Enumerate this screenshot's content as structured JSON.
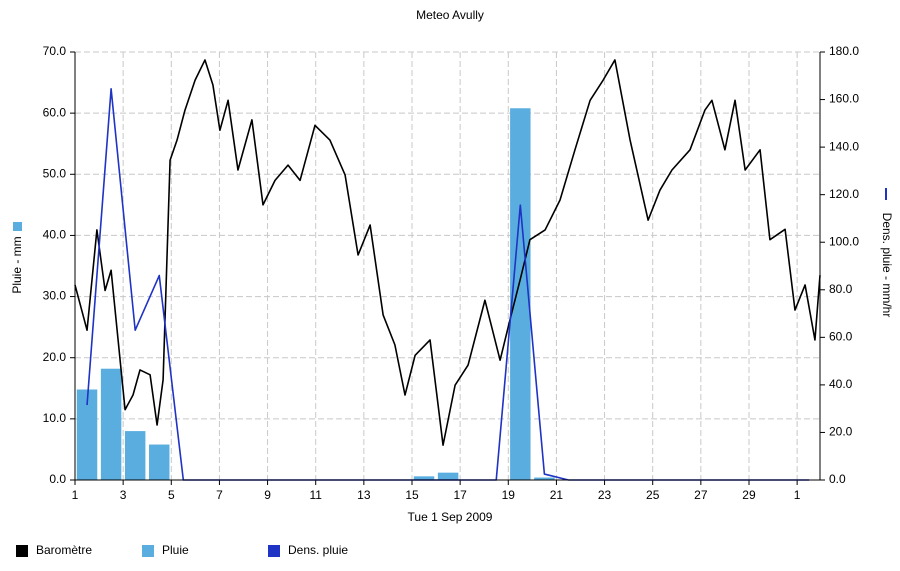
{
  "chart_data": {
    "type": "combo",
    "title": "Meteo Avully",
    "xlabel": "Tue 1 Sep 2009",
    "ylabel": "Pluie - mm",
    "y2label": "Dens. pluie - mm/hr",
    "xlim": [
      0,
      30.95
    ],
    "xticks": [
      {
        "value": 0,
        "label": "1"
      },
      {
        "value": 2,
        "label": "3"
      },
      {
        "value": 4,
        "label": "5"
      },
      {
        "value": 6,
        "label": "7"
      },
      {
        "value": 8,
        "label": "9"
      },
      {
        "value": 10,
        "label": "11"
      },
      {
        "value": 12,
        "label": "13"
      },
      {
        "value": 14,
        "label": "15"
      },
      {
        "value": 16,
        "label": "17"
      },
      {
        "value": 18,
        "label": "19"
      },
      {
        "value": 20,
        "label": "21"
      },
      {
        "value": 22,
        "label": "23"
      },
      {
        "value": 24,
        "label": "25"
      },
      {
        "value": 26,
        "label": "27"
      },
      {
        "value": 28,
        "label": "29"
      },
      {
        "value": 30,
        "label": "1"
      }
    ],
    "ylim": [
      0,
      70
    ],
    "yticks": [
      {
        "value": 0,
        "label": "0.0"
      },
      {
        "value": 10,
        "label": "10.0"
      },
      {
        "value": 20,
        "label": "20.0"
      },
      {
        "value": 30,
        "label": "30.0"
      },
      {
        "value": 40,
        "label": "40.0"
      },
      {
        "value": 50,
        "label": "50.0"
      },
      {
        "value": 60,
        "label": "60.0"
      },
      {
        "value": 70,
        "label": "70.0"
      }
    ],
    "y2lim": [
      0,
      180
    ],
    "y2ticks": [
      {
        "value": 0,
        "label": "0.0"
      },
      {
        "value": 20,
        "label": "20.0"
      },
      {
        "value": 40,
        "label": "40.0"
      },
      {
        "value": 60,
        "label": "60.0"
      },
      {
        "value": 80,
        "label": "80.0"
      },
      {
        "value": 100,
        "label": "100.0"
      },
      {
        "value": 120,
        "label": "120.0"
      },
      {
        "value": 140,
        "label": "140.0"
      },
      {
        "value": 160,
        "label": "160.0"
      },
      {
        "value": 180,
        "label": "180.0"
      }
    ],
    "grid": true,
    "legend": "bottom",
    "series": [
      {
        "name": "Baromètre",
        "type": "line",
        "color": "#000000",
        "x": [
          0,
          0.5,
          0.91,
          1.25,
          1.5,
          1.79,
          2.08,
          2.41,
          2.7,
          3.12,
          3.41,
          3.66,
          3.95,
          4.24,
          4.57,
          4.99,
          5.4,
          5.73,
          6.02,
          6.36,
          6.77,
          7.35,
          7.81,
          8.31,
          8.85,
          9.35,
          9.97,
          10.59,
          11.22,
          11.76,
          12.26,
          12.8,
          13.29,
          13.71,
          14.13,
          14.75,
          15.29,
          15.79,
          16.33,
          17.03,
          17.66,
          18.07,
          18.49,
          18.9,
          19.53,
          20.15,
          20.77,
          21.4,
          21.94,
          22.43,
          23.06,
          23.81,
          24.3,
          24.8,
          25.55,
          26.17,
          26.46,
          27,
          27.42,
          27.84,
          28.46,
          28.87,
          29.5,
          29.91,
          30.33,
          30.74,
          30.95
        ],
        "values": [
          31.9,
          24.5,
          40.9,
          31,
          34.3,
          22.9,
          11.5,
          13.9,
          18,
          17.2,
          9,
          16.4,
          52.3,
          55.6,
          60.5,
          65.4,
          68.7,
          64.6,
          57.2,
          62.1,
          50.7,
          58.9,
          45,
          49,
          51.5,
          49,
          58,
          55.6,
          49.9,
          36.8,
          41.7,
          27,
          22.1,
          13.9,
          20.4,
          22.9,
          5.7,
          15.5,
          18.8,
          29.4,
          19.6,
          26.2,
          32.7,
          39.3,
          40.9,
          45.8,
          54,
          62.1,
          65.4,
          68.7,
          55.6,
          42.5,
          47.4,
          50.7,
          54,
          60.5,
          62.1,
          54,
          62.1,
          50.7,
          54,
          39.3,
          41,
          27.8,
          31.9,
          22.9,
          33.5
        ]
      },
      {
        "name": "Pluie",
        "type": "bar",
        "color": "#5aaedf",
        "x": [
          0.5,
          1.5,
          2.5,
          3.5,
          14.5,
          15.5,
          18.5,
          19.5
        ],
        "values": [
          14.8,
          18.2,
          8.0,
          5.8,
          0.6,
          1.2,
          60.8,
          0.4
        ]
      },
      {
        "name": "Dens. pluie",
        "type": "line",
        "axis": "y2",
        "color": "#1f33c4",
        "x": [
          0.5,
          1.5,
          2.5,
          3.5,
          4.5,
          5.5,
          6.5,
          7.5,
          8.5,
          9.5,
          10.5,
          11.5,
          12.5,
          13.5,
          14.5,
          15.5,
          16.5,
          17.5,
          18.5,
          19.5,
          20.5,
          21.5,
          22.5,
          23.5,
          24.5,
          25.5,
          26.5,
          27.5,
          28.5,
          29.5,
          30.5
        ],
        "values": [
          31.5,
          164.5,
          63,
          86,
          0,
          0,
          0,
          0,
          0,
          0,
          0,
          0,
          0,
          0,
          0,
          0,
          0,
          0,
          115.6,
          2.5,
          0,
          0,
          0,
          0,
          0,
          0,
          0,
          0,
          0,
          0,
          0
        ]
      }
    ]
  }
}
